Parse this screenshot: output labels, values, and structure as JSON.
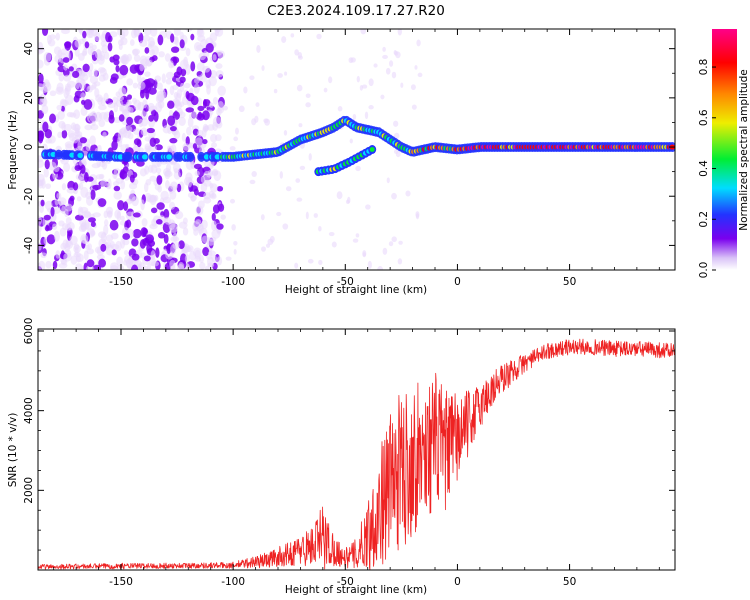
{
  "title": "C2E3.2024.109.17.27.R20",
  "colors": {
    "snr_line": "#ee2222",
    "colormap": [
      "#ffffff",
      "#ead8fb",
      "#7a00ee",
      "#2233ff",
      "#00ddff",
      "#00ee33",
      "#eeee00",
      "#ff8800",
      "#ff0000",
      "#ff0088"
    ]
  },
  "chart_data": [
    {
      "type": "heatmap",
      "xlabel": "Height of straight line (km)",
      "ylabel": "Frequency (Hz)",
      "xlim": [
        -187,
        97
      ],
      "ylim": [
        -50,
        48
      ],
      "xticks": [
        -150,
        -100,
        -50,
        0,
        50
      ],
      "yticks": [
        -40,
        -20,
        0,
        20,
        40
      ],
      "colorbar": {
        "label": "Normalized spectral amplitude",
        "range": [
          0.0,
          0.95
        ],
        "ticks": [
          0.0,
          0.2,
          0.4,
          0.6,
          0.8
        ]
      },
      "ridge": {
        "description_free": true,
        "x": [
          -180,
          -150,
          -110,
          -100,
          -90,
          -80,
          -70,
          -60,
          -55,
          -50,
          -45,
          -40,
          -35,
          -30,
          -25,
          -20,
          -10,
          0,
          10,
          30,
          60,
          95
        ],
        "y": [
          -3,
          -4,
          -4,
          -4,
          -3,
          -2,
          3,
          6,
          8,
          11,
          8,
          7,
          6,
          3,
          0,
          -2,
          0,
          -1,
          0,
          0,
          0,
          0
        ]
      },
      "branch": {
        "x": [
          -62,
          -55,
          -48,
          -42,
          -38
        ],
        "y": [
          -10,
          -9,
          -6,
          -3,
          -1
        ]
      }
    },
    {
      "type": "line",
      "xlabel": "Height of straight line (km)",
      "ylabel": "SNR (10 * v/v)",
      "xlim": [
        -187,
        97
      ],
      "ylim": [
        0,
        6050
      ],
      "xticks": [
        -150,
        -100,
        -50,
        0,
        50
      ],
      "yticks": [
        2000,
        4000,
        6000
      ],
      "envelope": {
        "x": [
          -187,
          -150,
          -120,
          -100,
          -85,
          -75,
          -65,
          -60,
          -55,
          -50,
          -45,
          -40,
          -35,
          -30,
          -25,
          -20,
          -15,
          -10,
          -5,
          0,
          5,
          10,
          15,
          20,
          25,
          30,
          35,
          40,
          50,
          60,
          70,
          80,
          97
        ],
        "mean": [
          80,
          100,
          110,
          120,
          250,
          400,
          600,
          800,
          500,
          300,
          400,
          900,
          1500,
          2200,
          2500,
          2800,
          3000,
          3200,
          3000,
          3300,
          3700,
          4100,
          4500,
          4800,
          5000,
          5200,
          5350,
          5500,
          5600,
          5600,
          5550,
          5550,
          5500
        ],
        "spread": [
          60,
          70,
          70,
          80,
          200,
          300,
          500,
          900,
          400,
          250,
          400,
          900,
          1500,
          1800,
          2000,
          2000,
          1600,
          1800,
          1500,
          1200,
          800,
          600,
          500,
          400,
          300,
          250,
          200,
          200,
          200,
          200,
          200,
          200,
          200
        ]
      }
    }
  ]
}
